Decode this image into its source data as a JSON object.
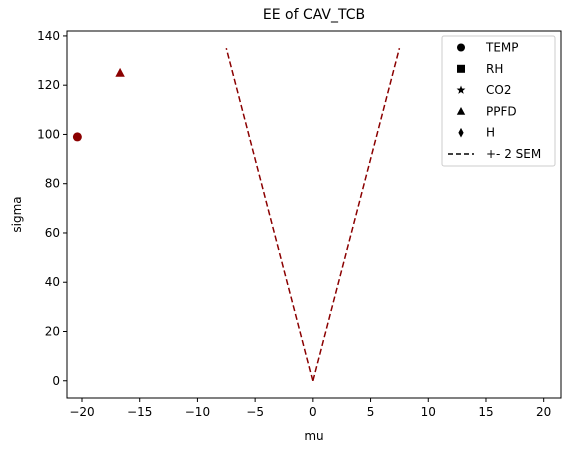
{
  "chart_data": {
    "type": "scatter",
    "title": "EE of CAV_TCB",
    "xlabel": "mu",
    "ylabel": "sigma",
    "xlim": [
      -21.3,
      21.5
    ],
    "ylim": [
      -7,
      142
    ],
    "xticks": [
      -20,
      -15,
      -10,
      -5,
      0,
      5,
      10,
      15,
      20
    ],
    "yticks": [
      0,
      20,
      40,
      60,
      80,
      100,
      120,
      140
    ],
    "grid": false,
    "legend_position": "top-right",
    "marker_color": "#8b0000",
    "line_color": "#8b0000",
    "series": [
      {
        "name": "TEMP",
        "marker": "circle",
        "x": [
          -20.4
        ],
        "y": [
          99
        ]
      },
      {
        "name": "RH",
        "marker": "square",
        "x": [],
        "y": []
      },
      {
        "name": "CO2",
        "marker": "star",
        "x": [],
        "y": []
      },
      {
        "name": "PPFD",
        "marker": "triangle",
        "x": [
          -16.7
        ],
        "y": [
          125
        ]
      },
      {
        "name": "H",
        "marker": "diamond",
        "x": [],
        "y": []
      }
    ],
    "sem_lines": {
      "name": "+- 2 SEM",
      "style": "dashed",
      "left": {
        "x": [
          0,
          -7.5
        ],
        "y": [
          0,
          135
        ]
      },
      "right": {
        "x": [
          0,
          7.5
        ],
        "y": [
          0,
          135
        ]
      }
    },
    "legend": [
      "TEMP",
      "RH",
      "CO2",
      "PPFD",
      "H",
      "+- 2 SEM"
    ]
  }
}
